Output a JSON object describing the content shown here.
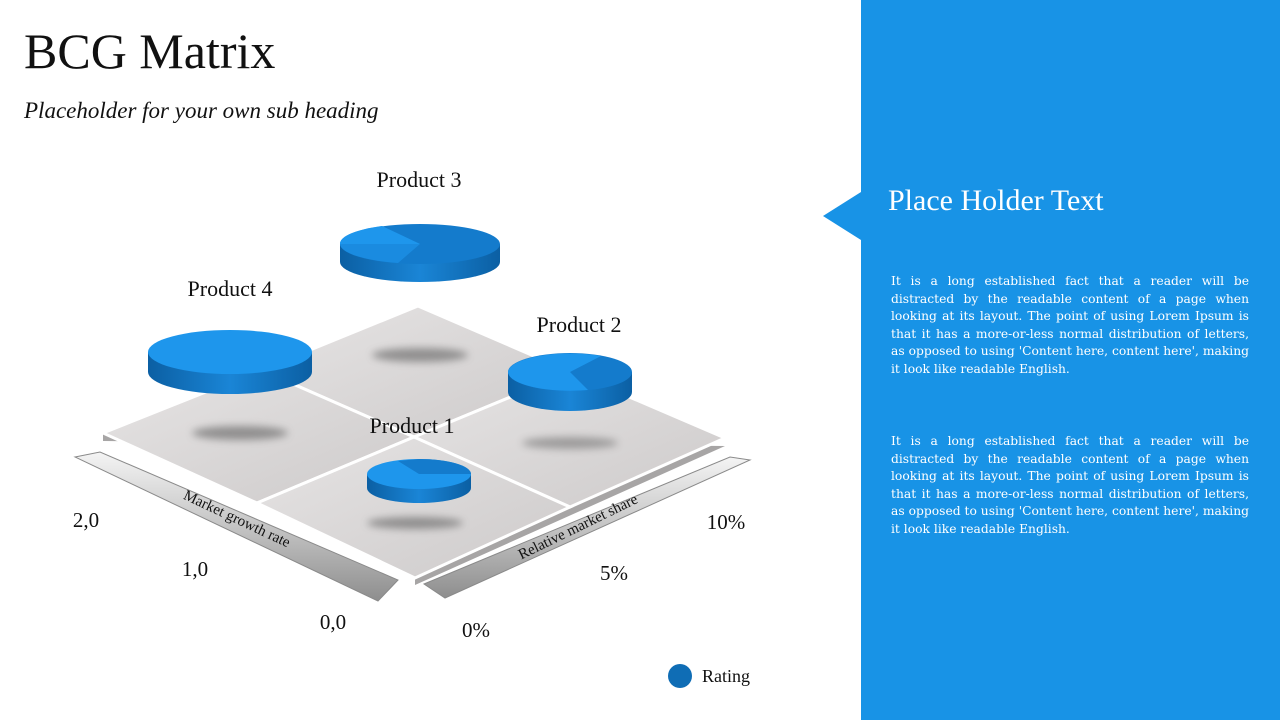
{
  "header": {
    "title": "BCG Matrix",
    "subtitle": "Placeholder for your own sub heading"
  },
  "panel": {
    "heading": "Place Holder Text",
    "paragraphs": [
      "It is a long established fact that a reader will be distracted by the readable content of a page when looking at its layout. The point of using Lorem Ipsum is that it has a more-or-less normal distribution of letters, as opposed to using 'Content here, content here', making it look like readable English.",
      "It is a long established fact that a reader will be distracted by the readable content of a page when looking at its layout. The point of using Lorem Ipsum is that it has a more-or-less normal distribution of letters, as opposed to using 'Content here, content here', making it look like readable English."
    ],
    "color": "#1893e6"
  },
  "matrix": {
    "products": [
      {
        "label": "Product 1"
      },
      {
        "label": "Product 2"
      },
      {
        "label": "Product 3"
      },
      {
        "label": "Product 4"
      }
    ],
    "left_axis": {
      "label": "Market growth rate",
      "ticks": [
        "2,0",
        "1,0",
        "0,0"
      ]
    },
    "right_axis": {
      "label": "Relative market share",
      "ticks": [
        "10%",
        "5%",
        "0%"
      ]
    },
    "legend": {
      "label": "Rating",
      "color": "#0f6db5"
    },
    "disc_top_color": "#1e96ec",
    "disc_side_color": "#0f6db5"
  }
}
